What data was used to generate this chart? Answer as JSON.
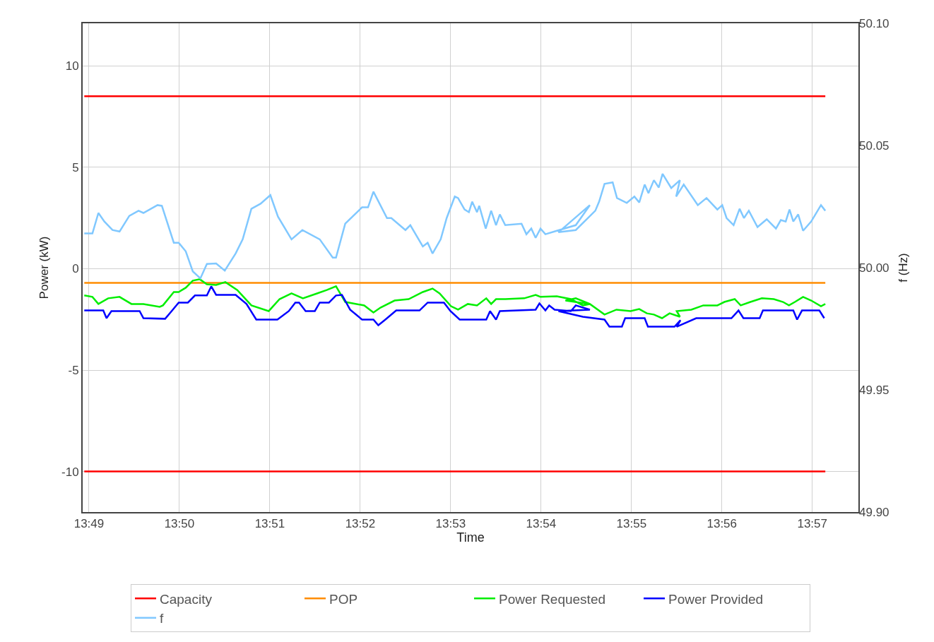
{
  "chart_data": {
    "type": "line",
    "xlabel": "Time",
    "ylabel": "Power (kW)",
    "y2label": "f (Hz)",
    "xlim": [
      13.8155,
      13.9585
    ],
    "xticks": [
      {
        "value": 13.81667,
        "label": "13:49"
      },
      {
        "value": 13.83333,
        "label": "13:50"
      },
      {
        "value": 13.85,
        "label": "13:51"
      },
      {
        "value": 13.86667,
        "label": "13:52"
      },
      {
        "value": 13.88333,
        "label": "13:53"
      },
      {
        "value": 13.9,
        "label": "13:54"
      },
      {
        "value": 13.91667,
        "label": "13:55"
      },
      {
        "value": 13.93333,
        "label": "13:56"
      },
      {
        "value": 13.95,
        "label": "13:57"
      }
    ],
    "ylim": [
      -12,
      12.1
    ],
    "yticks": [
      -10,
      -5,
      0,
      5,
      10
    ],
    "y2lim": [
      49.9,
      50.1
    ],
    "y2ticks": [
      {
        "value": 49.9,
        "label": "49.90"
      },
      49.95,
      {
        "value": 50,
        "label": "50.00"
      },
      50.05,
      {
        "value": 50.1,
        "label": "50.10"
      }
    ],
    "grid": true,
    "legend": "bottom",
    "marker": "none",
    "line_style": "solid",
    "series": [
      {
        "name": "Capacity",
        "color": "#ff0000",
        "x": [
          13.8158,
          13.9524
        ],
        "values": [
          8.5,
          8.5
        ]
      },
      {
        "color": "#ff0000",
        "x": [
          13.8158,
          13.9524
        ],
        "values": [
          -10,
          -10
        ]
      },
      {
        "name": "POP",
        "color": "#ff8c00",
        "x": [
          13.8158,
          13.9524
        ],
        "values": [
          -0.7,
          -0.7
        ]
      },
      {
        "name": "Power Requested",
        "color": "#00ee00",
        "x": [
          13.8158,
          13.8173,
          13.8184,
          13.8202,
          13.8223,
          13.8245,
          13.8267,
          13.8297,
          13.8303,
          13.8323,
          13.8332,
          13.8345,
          13.8358,
          13.8371,
          13.8384,
          13.8401,
          13.8418,
          13.844,
          13.8466,
          13.8498,
          13.8518,
          13.854,
          13.8561,
          13.8587,
          13.8605,
          13.8622,
          13.8639,
          13.8674,
          13.8691,
          13.8704,
          13.873,
          13.8756,
          13.8782,
          13.88,
          13.8813,
          13.8834,
          13.8847,
          13.8865,
          13.8882,
          13.8899,
          13.8908,
          13.8917,
          13.8934,
          13.8969,
          13.899,
          13.8999,
          13.9029,
          13.9055,
          13.9077,
          13.909,
          13.9045,
          13.9064,
          13.909,
          13.9117,
          13.9139,
          13.9165,
          13.9181,
          13.9195,
          13.9208,
          13.9223,
          13.9237,
          13.9256,
          13.925,
          13.9277,
          13.9299,
          13.9325,
          13.9338,
          13.9357,
          13.9368,
          13.9386,
          13.9407,
          13.9429,
          13.9446,
          13.9457,
          13.9468,
          13.9483,
          13.9498,
          13.9516,
          13.9524
        ],
        "values": [
          -1.32,
          -1.39,
          -1.74,
          -1.46,
          -1.39,
          -1.74,
          -1.74,
          -1.88,
          -1.81,
          -1.15,
          -1.15,
          -0.94,
          -0.59,
          -0.52,
          -0.77,
          -0.8,
          -0.66,
          -1.05,
          -1.81,
          -2.09,
          -1.5,
          -1.22,
          -1.46,
          -1.22,
          -1.05,
          -0.87,
          -1.64,
          -1.81,
          -2.16,
          -1.92,
          -1.57,
          -1.5,
          -1.15,
          -0.98,
          -1.22,
          -1.85,
          -2.02,
          -1.74,
          -1.81,
          -1.46,
          -1.74,
          -1.5,
          -1.5,
          -1.46,
          -1.29,
          -1.39,
          -1.36,
          -1.5,
          -1.81,
          -1.74,
          -1.57,
          -1.46,
          -1.74,
          -2.26,
          -2.02,
          -2.09,
          -1.99,
          -2.2,
          -2.26,
          -2.44,
          -2.2,
          -2.37,
          -2.09,
          -2.02,
          -1.81,
          -1.81,
          -1.64,
          -1.5,
          -1.81,
          -1.64,
          -1.46,
          -1.5,
          -1.64,
          -1.81,
          -1.64,
          -1.39,
          -1.57,
          -1.85,
          -1.74
        ]
      },
      {
        "name": "Power Provided",
        "color": "#0000ff",
        "x": [
          13.8158,
          13.8193,
          13.8199,
          13.8208,
          13.826,
          13.8267,
          13.8307,
          13.8319,
          13.8332,
          13.8349,
          13.8362,
          13.8384,
          13.8392,
          13.8401,
          13.8437,
          13.8457,
          13.8475,
          13.8514,
          13.8535,
          13.8547,
          13.8554,
          13.8566,
          13.8583,
          13.8592,
          13.8609,
          13.8622,
          13.8633,
          13.8648,
          13.867,
          13.8691,
          13.87,
          13.8713,
          13.8733,
          13.8776,
          13.8791,
          13.8821,
          13.8833,
          13.885,
          13.8899,
          13.8906,
          13.8917,
          13.8924,
          13.899,
          13.8997,
          13.9008,
          13.9015,
          13.9025,
          13.9055,
          13.9064,
          13.909,
          13.9032,
          13.9077,
          13.9117,
          13.9126,
          13.9149,
          13.9155,
          13.9191,
          13.9197,
          13.9246,
          13.9257,
          13.925,
          13.9286,
          13.9351,
          13.9364,
          13.9373,
          13.9403,
          13.9409,
          13.9465,
          13.9472,
          13.9481,
          13.9513,
          13.9522
        ],
        "values": [
          -2.06,
          -2.06,
          -2.44,
          -2.09,
          -2.09,
          -2.44,
          -2.47,
          -2.09,
          -1.67,
          -1.67,
          -1.32,
          -1.32,
          -0.87,
          -1.29,
          -1.29,
          -1.74,
          -2.51,
          -2.51,
          -2.09,
          -1.67,
          -1.67,
          -2.09,
          -2.09,
          -1.67,
          -1.67,
          -1.32,
          -1.29,
          -2.02,
          -2.51,
          -2.51,
          -2.79,
          -2.51,
          -2.06,
          -2.06,
          -1.67,
          -1.67,
          -2.09,
          -2.51,
          -2.51,
          -2.09,
          -2.51,
          -2.09,
          -2.02,
          -1.71,
          -2.06,
          -1.81,
          -2.02,
          -2.09,
          -1.81,
          -2.02,
          -2.09,
          -2.37,
          -2.51,
          -2.86,
          -2.86,
          -2.44,
          -2.44,
          -2.86,
          -2.86,
          -2.54,
          -2.86,
          -2.44,
          -2.44,
          -2.06,
          -2.44,
          -2.44,
          -2.06,
          -2.06,
          -2.51,
          -2.06,
          -2.06,
          -2.44
        ]
      },
      {
        "name": "f",
        "color": "#80c8ff",
        "axis": "y2",
        "x": [
          13.8158,
          13.8173,
          13.8184,
          13.8195,
          13.821,
          13.8223,
          13.8241,
          13.8258,
          13.8267,
          13.8293,
          13.8301,
          13.8323,
          13.8332,
          13.8345,
          13.8358,
          13.8372,
          13.8384,
          13.8401,
          13.8417,
          13.8437,
          13.845,
          13.8466,
          13.8483,
          13.8501,
          13.8515,
          13.854,
          13.856,
          13.8592,
          13.8616,
          13.8622,
          13.8639,
          13.867,
          13.8681,
          13.8691,
          13.8716,
          13.8724,
          13.875,
          13.8759,
          13.8782,
          13.8791,
          13.88,
          13.8815,
          13.8826,
          13.8841,
          13.8847,
          13.8859,
          13.8867,
          13.8873,
          13.8882,
          13.8886,
          13.8898,
          13.8908,
          13.8917,
          13.8924,
          13.8934,
          13.8964,
          13.8973,
          13.8982,
          13.899,
          13.8999,
          13.9008,
          13.9029,
          13.9064,
          13.909,
          13.9032,
          13.9064,
          13.91,
          13.9107,
          13.9117,
          13.9132,
          13.914,
          13.9158,
          13.9172,
          13.9181,
          13.9191,
          13.9198,
          13.9208,
          13.9217,
          13.9224,
          13.924,
          13.9256,
          13.9249,
          13.9263,
          13.9289,
          13.9305,
          13.9325,
          13.9334,
          13.9342,
          13.9355,
          13.9366,
          13.9374,
          13.9383,
          13.9399,
          13.9416,
          13.9433,
          13.9442,
          13.9451,
          13.9458,
          13.9465,
          13.9474,
          13.9483,
          13.9498,
          13.9516,
          13.9524
        ],
        "values": [
          50.014,
          50.014,
          50.0224,
          50.0189,
          50.0154,
          50.0148,
          50.0212,
          50.0233,
          50.0224,
          50.0256,
          50.0253,
          50.0102,
          50.0102,
          50.0067,
          49.9985,
          49.9956,
          50.0015,
          50.0017,
          49.9988,
          50.0058,
          50.0116,
          50.0241,
          50.0262,
          50.0297,
          50.0209,
          50.0116,
          50.0154,
          50.0116,
          50.0041,
          50.0041,
          50.018,
          50.0247,
          50.0247,
          50.0311,
          50.0203,
          50.0203,
          50.0154,
          50.0174,
          50.0087,
          50.0102,
          50.0058,
          50.0116,
          50.0203,
          50.0291,
          50.0285,
          50.0238,
          50.0227,
          50.027,
          50.0227,
          50.0253,
          50.016,
          50.0233,
          50.0174,
          50.0218,
          50.0174,
          50.018,
          50.0137,
          50.016,
          50.0122,
          50.016,
          50.0137,
          50.0151,
          50.0174,
          50.0256,
          50.0145,
          50.0154,
          50.0233,
          50.027,
          50.0343,
          50.0349,
          50.0285,
          50.0265,
          50.0291,
          50.0267,
          50.034,
          50.0305,
          50.0358,
          50.0328,
          50.0384,
          50.0326,
          50.0358,
          50.0291,
          50.034,
          50.0256,
          50.0285,
          50.0238,
          50.0256,
          50.0203,
          50.0174,
          50.0241,
          50.0203,
          50.0233,
          50.0166,
          50.0198,
          50.016,
          50.0195,
          50.0189,
          50.0238,
          50.0189,
          50.0218,
          50.0151,
          50.0189,
          50.0256,
          50.0233
        ]
      }
    ]
  }
}
